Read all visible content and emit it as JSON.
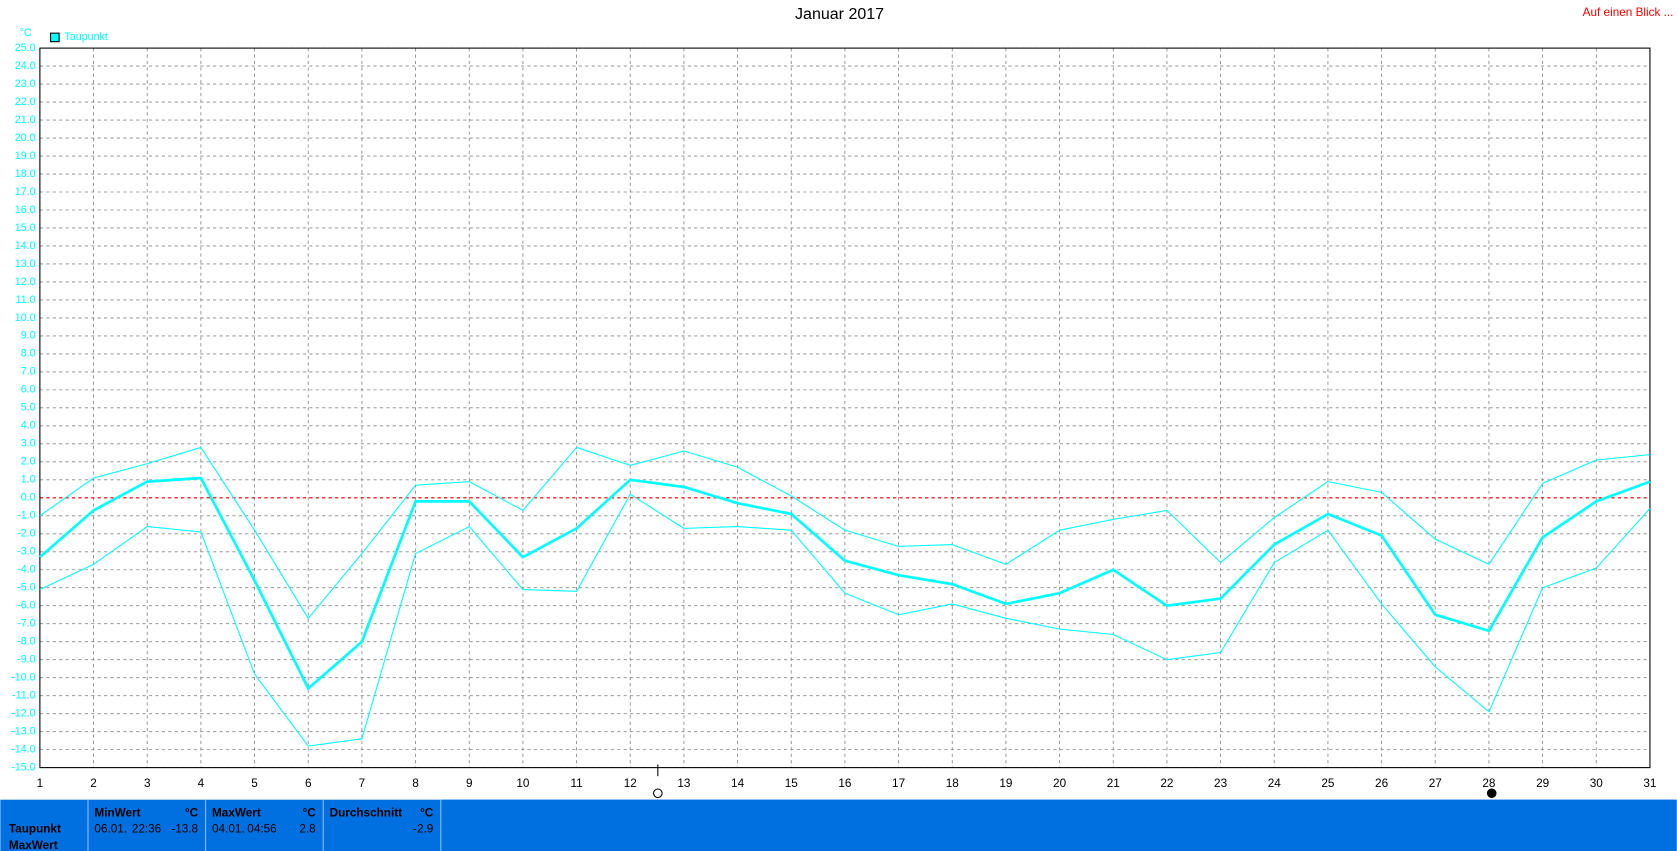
{
  "chart_data": {
    "type": "line",
    "title": "Januar 2017",
    "y_label": "°C",
    "x": [
      1,
      2,
      3,
      4,
      5,
      6,
      7,
      8,
      9,
      10,
      11,
      12,
      13,
      14,
      15,
      16,
      17,
      18,
      19,
      20,
      21,
      22,
      23,
      24,
      25,
      26,
      27,
      28,
      29,
      30,
      31
    ],
    "xlim": [
      1,
      31
    ],
    "xticks": [
      1,
      2,
      3,
      4,
      5,
      6,
      7,
      8,
      9,
      10,
      11,
      12,
      13,
      14,
      15,
      16,
      17,
      18,
      19,
      20,
      21,
      22,
      23,
      24,
      25,
      26,
      27,
      28,
      29,
      30,
      31
    ],
    "ylim": [
      -15,
      25
    ],
    "yticks": [
      {
        "value": -15,
        "label": "-15.0"
      },
      {
        "value": -14,
        "label": "-14.0"
      },
      {
        "value": -13,
        "label": "-13.0"
      },
      {
        "value": -12,
        "label": "-12.0"
      },
      {
        "value": -11,
        "label": "-11.0"
      },
      {
        "value": -10,
        "label": "-10.0"
      },
      {
        "value": -9,
        "label": "-9.0"
      },
      {
        "value": -8,
        "label": "-8.0"
      },
      {
        "value": -7,
        "label": "-7.0"
      },
      {
        "value": -6,
        "label": "-6.0"
      },
      {
        "value": -5,
        "label": "-5.0"
      },
      {
        "value": -4,
        "label": "-4.0"
      },
      {
        "value": -3,
        "label": "-3.0"
      },
      {
        "value": -2,
        "label": "-2.0"
      },
      {
        "value": -1,
        "label": "-1.0"
      },
      {
        "value": 0,
        "label": "0.0"
      },
      {
        "value": 1,
        "label": "1.0"
      },
      {
        "value": 2,
        "label": "2.0"
      },
      {
        "value": 3,
        "label": "3.0"
      },
      {
        "value": 4,
        "label": "4.0"
      },
      {
        "value": 5,
        "label": "5.0"
      },
      {
        "value": 6,
        "label": "6.0"
      },
      {
        "value": 7,
        "label": "7.0"
      },
      {
        "value": 8,
        "label": "8.0"
      },
      {
        "value": 9,
        "label": "9.0"
      },
      {
        "value": 10,
        "label": "10.0"
      },
      {
        "value": 11,
        "label": "11.0"
      },
      {
        "value": 12,
        "label": "12.0"
      },
      {
        "value": 13,
        "label": "13.0"
      },
      {
        "value": 14,
        "label": "14.0"
      },
      {
        "value": 15,
        "label": "15.0"
      },
      {
        "value": 16,
        "label": "16.0"
      },
      {
        "value": 17,
        "label": "17.0"
      },
      {
        "value": 18,
        "label": "18.0"
      },
      {
        "value": 19,
        "label": "19.0"
      },
      {
        "value": 20,
        "label": "20.0"
      },
      {
        "value": 21,
        "label": "21.0"
      },
      {
        "value": 22,
        "label": "22.0"
      },
      {
        "value": 23,
        "label": "23.0"
      },
      {
        "value": 24,
        "label": "24.0"
      },
      {
        "value": 25,
        "label": "25.0"
      }
    ],
    "grid": true,
    "zero_line": {
      "value": 0,
      "color": "#ff0000"
    },
    "legend_position": "top-left",
    "series": [
      {
        "name": "Taupunkt",
        "color": "#00ffff",
        "width": 2.5,
        "values": [
          -3.3,
          -0.7,
          0.9,
          1.1,
          -4.6,
          -10.6,
          -8.0,
          -0.2,
          -0.2,
          -3.3,
          -1.7,
          1.0,
          0.6,
          -0.3,
          -0.9,
          -3.5,
          -4.3,
          -4.8,
          -5.9,
          -5.3,
          -4.0,
          -6.0,
          -5.6,
          -2.6,
          -0.9,
          -2.1,
          -6.5,
          -7.4,
          -2.2,
          -0.2,
          0.9
        ]
      },
      {
        "color": "#00ffff",
        "width": 1,
        "values": [
          -1.0,
          1.1,
          1.9,
          2.8,
          -1.8,
          -6.7,
          -3.1,
          0.7,
          0.9,
          -0.7,
          2.8,
          1.8,
          2.6,
          1.7,
          0.1,
          -1.8,
          -2.7,
          -2.6,
          -3.7,
          -1.8,
          -1.2,
          -0.7,
          -3.6,
          -1.1,
          0.9,
          0.3,
          -2.3,
          -3.7,
          0.8,
          2.1,
          2.4
        ]
      },
      {
        "color": "#00ffff",
        "width": 1,
        "values": [
          -5.1,
          -3.7,
          -1.6,
          -1.9,
          -9.8,
          -13.8,
          -13.4,
          -3.1,
          -1.6,
          -5.1,
          -5.2,
          0.2,
          -1.7,
          -1.6,
          -1.8,
          -5.3,
          -6.5,
          -5.9,
          -6.7,
          -7.3,
          -7.6,
          -9.0,
          -8.6,
          -3.6,
          -1.8,
          -5.9,
          -9.4,
          -11.9,
          -5.0,
          -3.9,
          -0.6
        ]
      }
    ]
  },
  "header_link": "Auf einen Blick ...",
  "summary_panel": {
    "row_labels": [
      "Taupunkt",
      "MaxWert"
    ],
    "min": {
      "title": "MinWert",
      "unit": "°C",
      "date": "06.01.",
      "time": "22:36",
      "value": "-13.8"
    },
    "max": {
      "title": "MaxWert",
      "unit": "°C",
      "date": "04.01.",
      "time": "04:56",
      "value": "2.8"
    },
    "avg": {
      "title": "Durchschnitt",
      "unit": "°C",
      "value": "-2.9"
    }
  }
}
